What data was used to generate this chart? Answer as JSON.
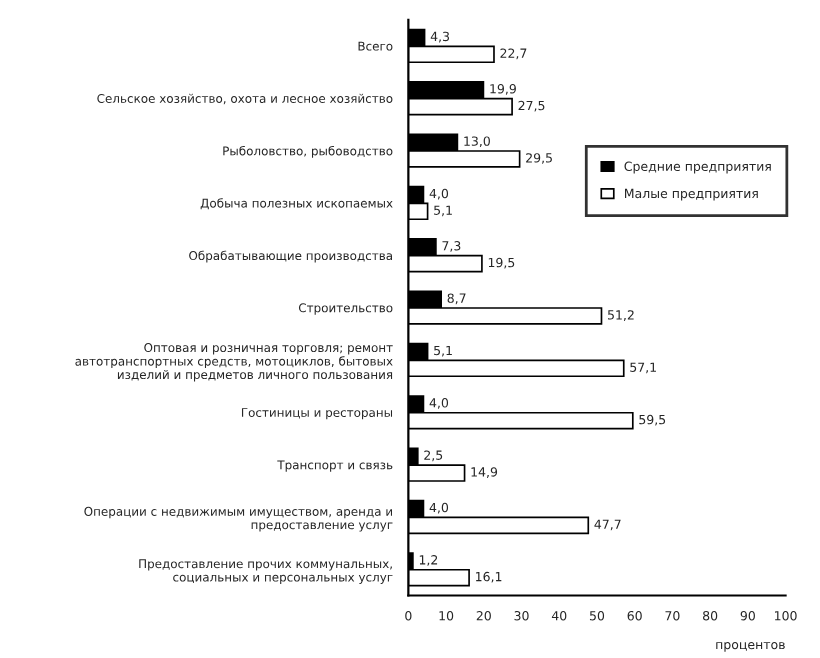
{
  "chart_data": {
    "type": "bar",
    "orientation": "horizontal",
    "xlabel": "процентов",
    "categories": [
      "Всего",
      "Сельское хозяйство, охота и лесное хозяйство",
      "Рыболовство, рыбоводство",
      "Добыча полезных ископаемых",
      "Обрабатывающие производства",
      "Строительство",
      "Оптовая и розничная торговля; ремонт\nавтотранспортных средств, мотоциклов, бытовых\nизделий и предметов личного пользования",
      "Гостиницы и рестораны",
      "Транспорт и связь",
      "Операции с недвижимым имуществом, аренда и\nпредоставление услуг",
      "Предоставление прочих коммунальных,\nсоциальных и персональных услуг"
    ],
    "series": [
      {
        "name": "Средние предприятия",
        "color": "#000000",
        "values": [
          4.3,
          19.9,
          13.0,
          4.0,
          7.3,
          8.7,
          5.1,
          4.0,
          2.5,
          4.0,
          1.2
        ],
        "value_labels": [
          "4,3",
          "19,9",
          "13,0",
          "4,0",
          "7,3",
          "8,7",
          "5,1",
          "4,0",
          "2,5",
          "4,0",
          "1,2"
        ]
      },
      {
        "name": "Малые предприятия",
        "color": "#ffffff",
        "values": [
          22.7,
          27.5,
          29.5,
          5.1,
          19.5,
          51.2,
          57.1,
          59.5,
          14.9,
          47.7,
          16.1
        ],
        "value_labels": [
          "22,7",
          "27,5",
          "29,5",
          "5,1",
          "19,5",
          "51,2",
          "57,1",
          "59,5",
          "14,9",
          "47,7",
          "16,1"
        ]
      }
    ],
    "xlim": [
      0,
      100
    ],
    "xticks": [
      0,
      10,
      20,
      30,
      40,
      50,
      60,
      70,
      80,
      90,
      100
    ],
    "grid": false,
    "legend": "right"
  }
}
